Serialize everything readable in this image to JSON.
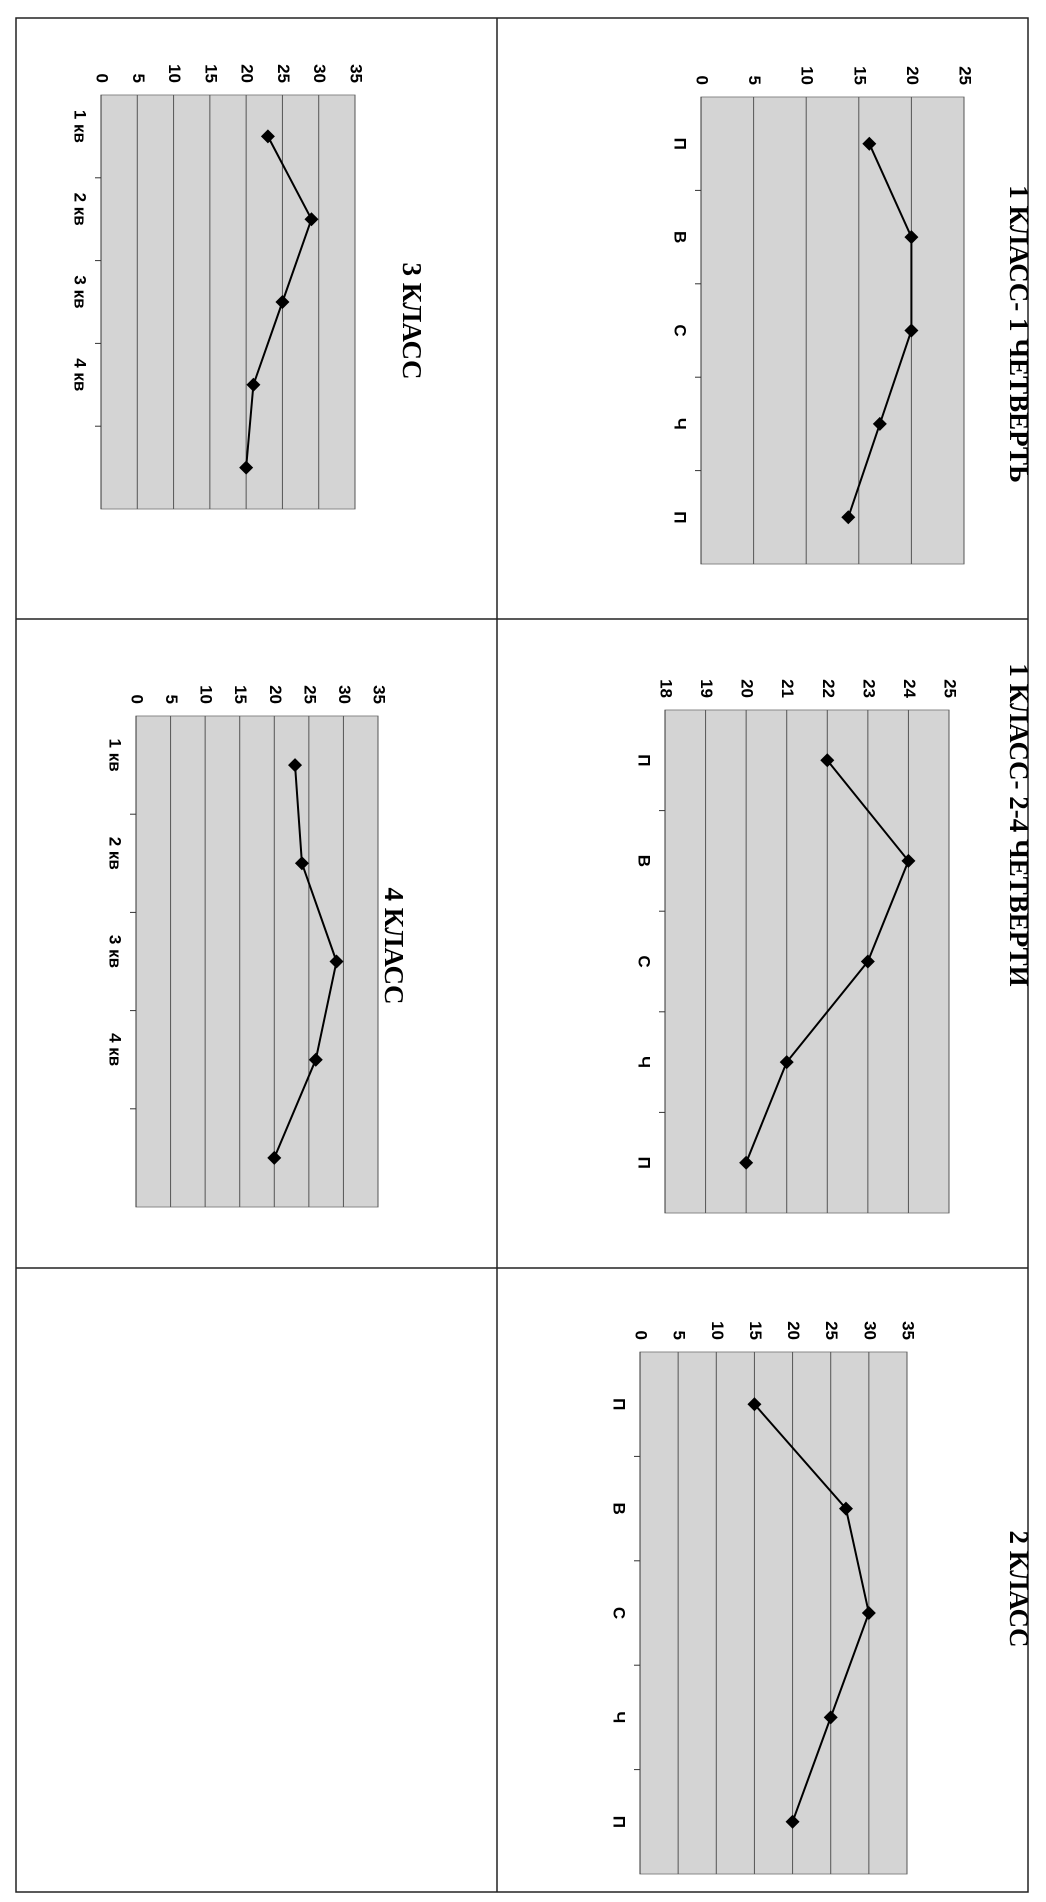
{
  "chart_data": [
    {
      "type": "line",
      "title": "1 КЛАСС- 1 ЧЕТВЕРТЬ",
      "categories": [
        "П",
        "В",
        "С",
        "Ч",
        "П"
      ],
      "values": [
        16,
        20,
        20,
        17,
        14
      ],
      "ylim": [
        0,
        25
      ],
      "yticks": [
        0,
        5,
        10,
        15,
        20,
        25
      ],
      "color": "#000000",
      "grid": true
    },
    {
      "type": "line",
      "title": "1 КЛАСС- 2-4 ЧЕТВЕРТИ",
      "categories": [
        "П",
        "В",
        "С",
        "Ч",
        "П"
      ],
      "values": [
        22,
        24,
        23,
        21,
        20
      ],
      "ylim": [
        18,
        25
      ],
      "yticks": [
        18,
        19,
        20,
        21,
        22,
        23,
        24,
        25
      ],
      "color": "#000000",
      "grid": true
    },
    {
      "type": "line",
      "title": "2 КЛАСС",
      "categories": [
        "П",
        "В",
        "С",
        "Ч",
        "П"
      ],
      "values": [
        15,
        27,
        30,
        25,
        20
      ],
      "ylim": [
        0,
        35
      ],
      "yticks": [
        0,
        5,
        10,
        15,
        20,
        25,
        30,
        35
      ],
      "color": "#000000",
      "grid": true
    },
    {
      "type": "line",
      "title": "3 КЛАСС",
      "categories": [
        "1 кв",
        "2 кв",
        "3 кв",
        "4 кв",
        null
      ],
      "values": [
        23,
        29,
        25,
        21,
        20
      ],
      "ylim": [
        0,
        35
      ],
      "yticks": [
        0,
        5,
        10,
        15,
        20,
        25,
        30,
        35
      ],
      "color": "#000000",
      "grid": true
    },
    {
      "type": "line",
      "title": "4 КЛАСС",
      "categories": [
        "1 кв",
        "2 кв",
        "3 кв",
        "4 кв",
        null
      ],
      "values": [
        23,
        24,
        29,
        26,
        20
      ],
      "ylim": [
        0,
        35
      ],
      "yticks": [
        0,
        5,
        10,
        15,
        20,
        25,
        30,
        35
      ],
      "color": "#000000",
      "grid": true
    }
  ]
}
